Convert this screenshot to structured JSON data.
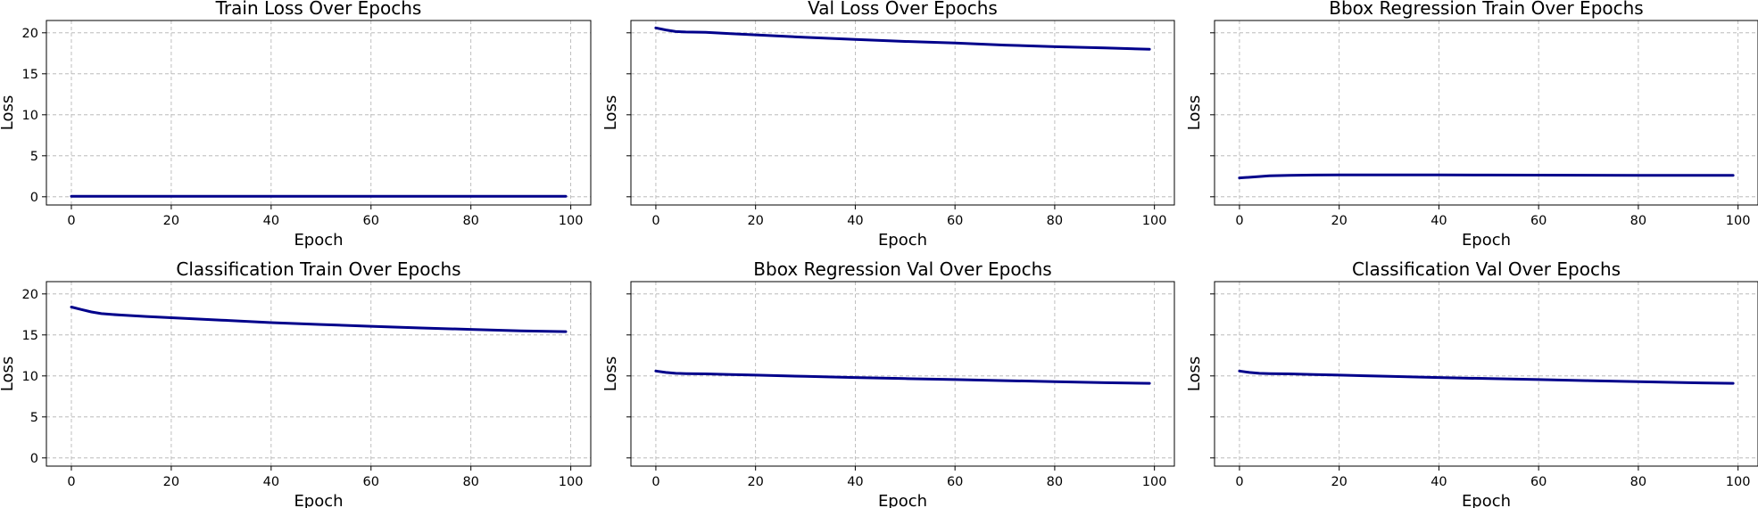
{
  "colors": {
    "line": "#00008b",
    "frame": "#000000",
    "grid": "#b0b0b0"
  },
  "chart_data": [
    {
      "type": "line",
      "title": "Train Loss Over Epochs",
      "xlabel": "Epoch",
      "ylabel": "Loss",
      "xlim": [
        -5,
        104
      ],
      "ylim": [
        -1,
        21.5
      ],
      "xticks": [
        0,
        20,
        40,
        60,
        80,
        100
      ],
      "yticks": [
        0,
        5,
        10,
        15,
        20
      ],
      "show_ytick_labels": true,
      "grid": true,
      "series": [
        {
          "x": [
            0,
            5,
            10,
            20,
            30,
            40,
            50,
            60,
            70,
            80,
            90,
            99
          ],
          "y": [
            0.05,
            0.05,
            0.05,
            0.05,
            0.05,
            0.05,
            0.05,
            0.05,
            0.05,
            0.05,
            0.05,
            0.05
          ]
        }
      ]
    },
    {
      "type": "line",
      "title": "Val Loss Over Epochs",
      "xlabel": "Epoch",
      "ylabel": "Loss",
      "xlim": [
        -5,
        104
      ],
      "ylim": [
        -1,
        21.5
      ],
      "xticks": [
        0,
        20,
        40,
        60,
        80,
        100
      ],
      "yticks": [
        0,
        5,
        10,
        15,
        20
      ],
      "show_ytick_labels": false,
      "grid": true,
      "series": [
        {
          "x": [
            0,
            2,
            4,
            6,
            10,
            15,
            20,
            30,
            40,
            50,
            60,
            70,
            80,
            90,
            99
          ],
          "y": [
            20.6,
            20.35,
            20.15,
            20.1,
            20.05,
            19.9,
            19.75,
            19.45,
            19.2,
            18.95,
            18.75,
            18.5,
            18.3,
            18.15,
            18.0
          ]
        }
      ]
    },
    {
      "type": "line",
      "title": "Bbox Regression Train Over Epochs",
      "xlabel": "Epoch",
      "ylabel": "Loss",
      "xlim": [
        -5,
        104
      ],
      "ylim": [
        -1,
        21.5
      ],
      "xticks": [
        0,
        20,
        40,
        60,
        80,
        100
      ],
      "yticks": [
        0,
        5,
        10,
        15,
        20
      ],
      "show_ytick_labels": false,
      "grid": true,
      "series": [
        {
          "x": [
            0,
            3,
            6,
            10,
            15,
            20,
            30,
            40,
            50,
            60,
            70,
            80,
            90,
            99
          ],
          "y": [
            2.3,
            2.42,
            2.55,
            2.62,
            2.65,
            2.66,
            2.66,
            2.66,
            2.65,
            2.64,
            2.63,
            2.62,
            2.62,
            2.62
          ]
        }
      ]
    },
    {
      "type": "line",
      "title": "Classification Train Over Epochs",
      "xlabel": "Epoch",
      "ylabel": "Loss",
      "xlim": [
        -5,
        104
      ],
      "ylim": [
        -1,
        21.5
      ],
      "xticks": [
        0,
        20,
        40,
        60,
        80,
        100
      ],
      "yticks": [
        0,
        5,
        10,
        15,
        20
      ],
      "show_ytick_labels": true,
      "grid": true,
      "series": [
        {
          "x": [
            0,
            2,
            4,
            6,
            8,
            10,
            15,
            20,
            30,
            40,
            50,
            60,
            70,
            80,
            90,
            99
          ],
          "y": [
            18.4,
            18.1,
            17.8,
            17.6,
            17.5,
            17.42,
            17.25,
            17.1,
            16.8,
            16.5,
            16.27,
            16.05,
            15.85,
            15.67,
            15.5,
            15.4
          ]
        }
      ]
    },
    {
      "type": "line",
      "title": "Bbox Regression Val Over Epochs",
      "xlabel": "Epoch",
      "ylabel": "Loss",
      "xlim": [
        -5,
        104
      ],
      "ylim": [
        -1,
        21.5
      ],
      "xticks": [
        0,
        20,
        40,
        60,
        80,
        100
      ],
      "yticks": [
        0,
        5,
        10,
        15,
        20
      ],
      "show_ytick_labels": false,
      "grid": true,
      "series": [
        {
          "x": [
            0,
            2,
            4,
            6,
            10,
            15,
            20,
            30,
            40,
            50,
            60,
            70,
            80,
            90,
            99
          ],
          "y": [
            10.6,
            10.42,
            10.32,
            10.28,
            10.25,
            10.17,
            10.1,
            9.95,
            9.8,
            9.67,
            9.55,
            9.42,
            9.3,
            9.17,
            9.1
          ]
        }
      ]
    },
    {
      "type": "line",
      "title": "Classification Val Over Epochs",
      "xlabel": "Epoch",
      "ylabel": "Loss",
      "xlim": [
        -5,
        104
      ],
      "ylim": [
        -1,
        21.5
      ],
      "xticks": [
        0,
        20,
        40,
        60,
        80,
        100
      ],
      "yticks": [
        0,
        5,
        10,
        15,
        20
      ],
      "show_ytick_labels": false,
      "grid": true,
      "series": [
        {
          "x": [
            0,
            2,
            4,
            6,
            10,
            15,
            20,
            30,
            40,
            50,
            60,
            70,
            80,
            90,
            99
          ],
          "y": [
            10.6,
            10.42,
            10.32,
            10.28,
            10.25,
            10.17,
            10.1,
            9.95,
            9.8,
            9.67,
            9.55,
            9.42,
            9.3,
            9.17,
            9.1
          ]
        }
      ]
    }
  ]
}
